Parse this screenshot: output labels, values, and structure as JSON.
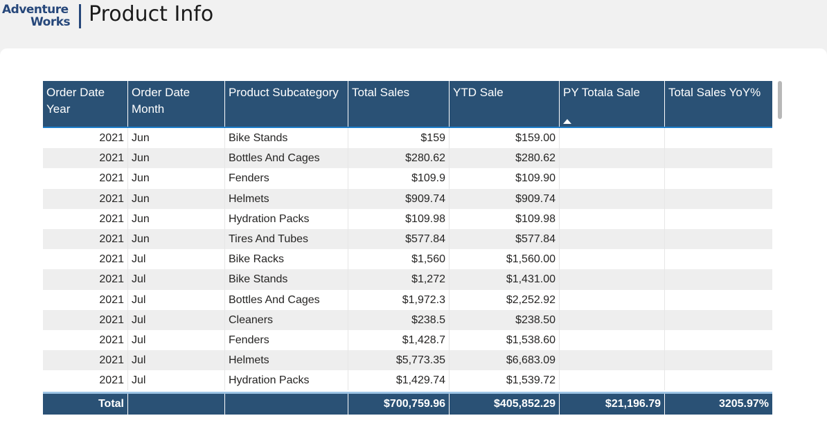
{
  "header": {
    "logo_line1": "Adventure",
    "logo_line2": "Works",
    "title": "Product Info"
  },
  "table": {
    "columns": [
      "Order Date Year",
      "Order Date Month",
      "Product Subcategory",
      "Total Sales",
      "YTD Sale",
      "PY Totala Sale",
      "Total Sales YoY%"
    ],
    "sorted_column": "PY Totala Sale",
    "rows": [
      [
        "2021",
        "Jun",
        "Bike Stands",
        "$159",
        "$159.00",
        "",
        ""
      ],
      [
        "2021",
        "Jun",
        "Bottles And Cages",
        "$280.62",
        "$280.62",
        "",
        ""
      ],
      [
        "2021",
        "Jun",
        "Fenders",
        "$109.9",
        "$109.90",
        "",
        ""
      ],
      [
        "2021",
        "Jun",
        "Helmets",
        "$909.74",
        "$909.74",
        "",
        ""
      ],
      [
        "2021",
        "Jun",
        "Hydration Packs",
        "$109.98",
        "$109.98",
        "",
        ""
      ],
      [
        "2021",
        "Jun",
        "Tires And Tubes",
        "$577.84",
        "$577.84",
        "",
        ""
      ],
      [
        "2021",
        "Jul",
        "Bike Racks",
        "$1,560",
        "$1,560.00",
        "",
        ""
      ],
      [
        "2021",
        "Jul",
        "Bike Stands",
        "$1,272",
        "$1,431.00",
        "",
        ""
      ],
      [
        "2021",
        "Jul",
        "Bottles And Cages",
        "$1,972.3",
        "$2,252.92",
        "",
        ""
      ],
      [
        "2021",
        "Jul",
        "Cleaners",
        "$238.5",
        "$238.50",
        "",
        ""
      ],
      [
        "2021",
        "Jul",
        "Fenders",
        "$1,428.7",
        "$1,538.60",
        "",
        ""
      ],
      [
        "2021",
        "Jul",
        "Helmets",
        "$5,773.35",
        "$6,683.09",
        "",
        ""
      ],
      [
        "2021",
        "Jul",
        "Hydration Packs",
        "$1,429.74",
        "$1,539.72",
        "",
        ""
      ]
    ],
    "total": {
      "label": "Total",
      "total_sales": "$700,759.96",
      "ytd_sale": "$405,852.29",
      "py_total_sale": "$21,196.79",
      "yoy_pct": "3205.97%"
    }
  },
  "colors": {
    "header_bg": "#2a5175",
    "alt_row": "#eeeeee",
    "logo": "#26477a"
  }
}
